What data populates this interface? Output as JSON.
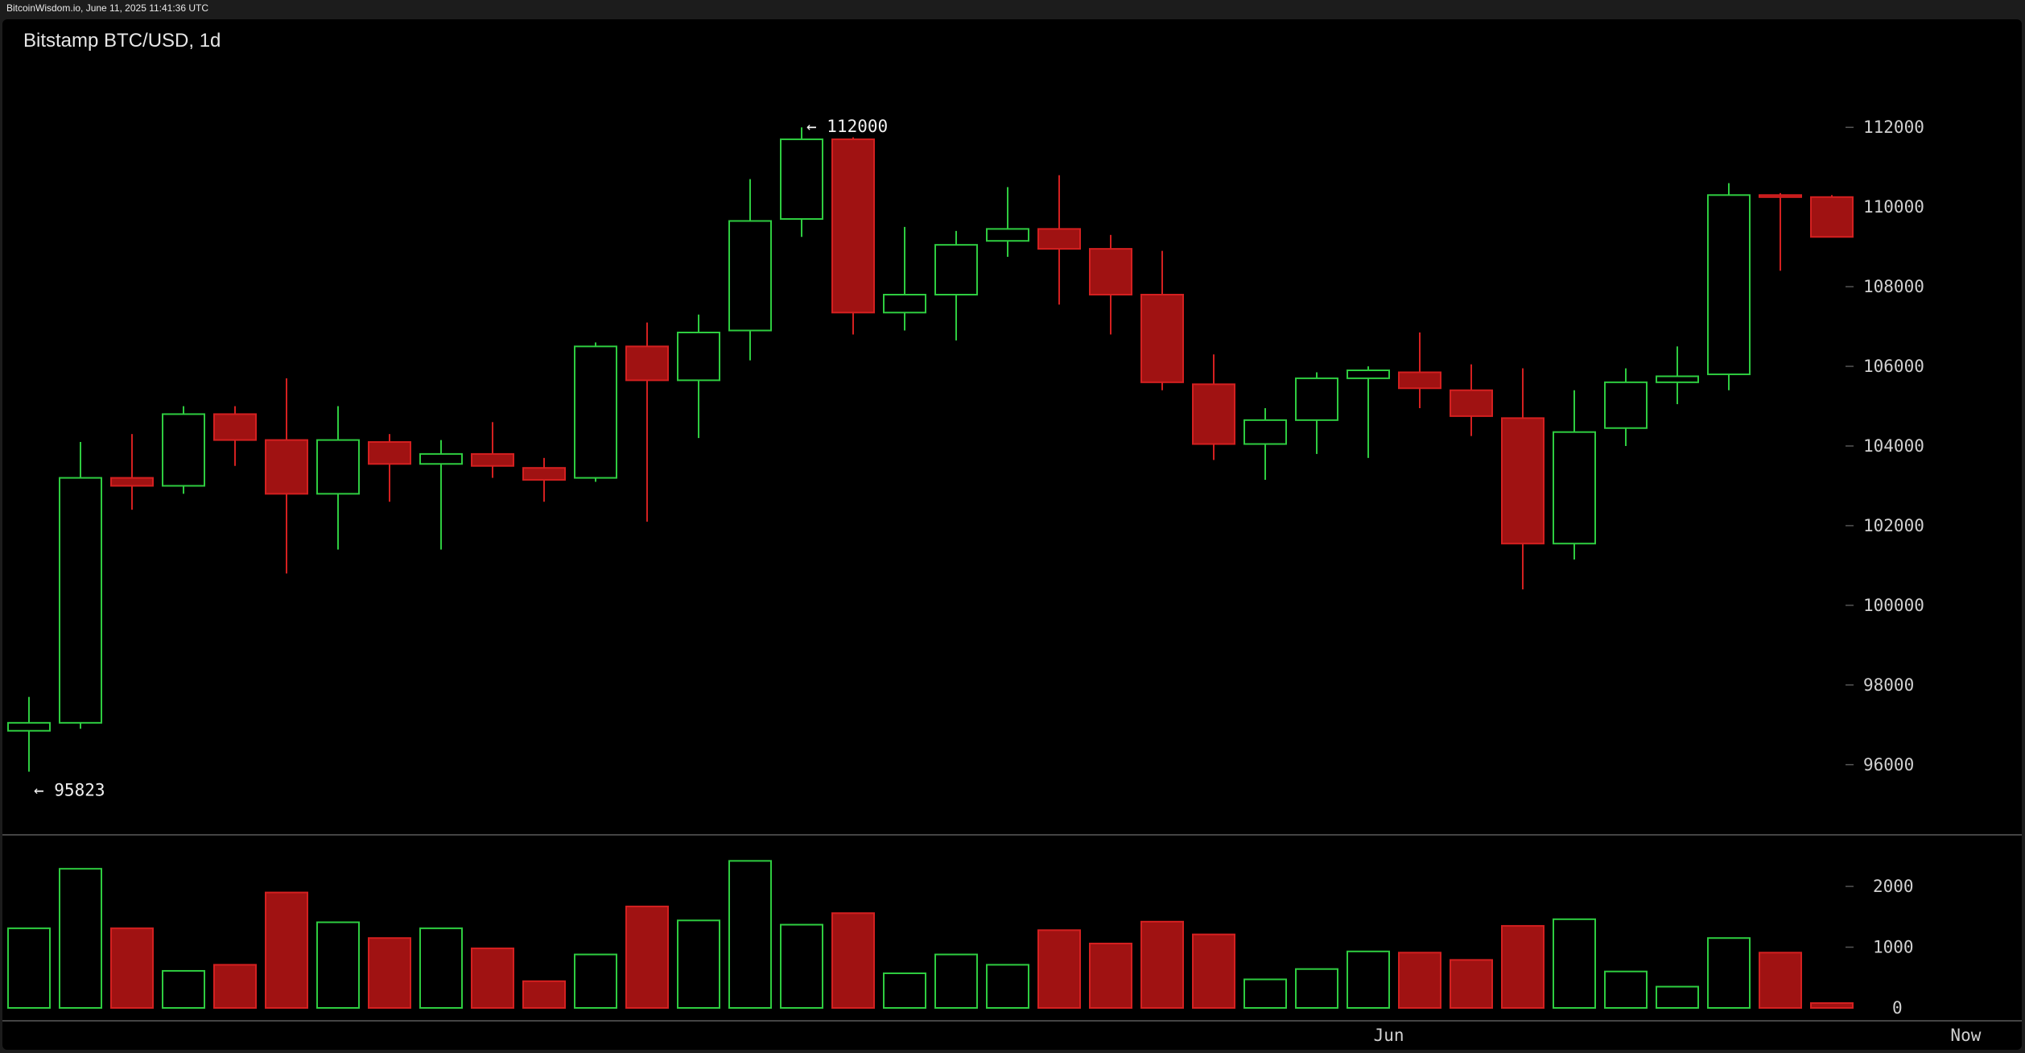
{
  "header": {
    "text": "BitcoinWisdom.io, June 11, 2025 11:41:36 UTC"
  },
  "chart_title": "Bitstamp BTC/USD, 1d",
  "colors": {
    "up": "#2ecc40",
    "down": "#a01212",
    "down_border": "#d42020",
    "background": "#000000",
    "axis_text": "#d0d0d0"
  },
  "chart_data": [
    {
      "type": "candlestick",
      "title": "Bitstamp BTC/USD, 1d",
      "ylim": [
        94500,
        113500
      ],
      "y_ticks": [
        96000,
        98000,
        100000,
        102000,
        104000,
        106000,
        108000,
        110000,
        112000
      ],
      "annotations": [
        {
          "text": "← 112000",
          "value": 112000,
          "index": 15
        },
        {
          "text": "← 95823",
          "value": 95823,
          "index": 0
        }
      ],
      "candles": [
        {
          "o": 96850,
          "h": 97700,
          "l": 95823,
          "c": 97050
        },
        {
          "o": 97050,
          "h": 104100,
          "l": 96900,
          "c": 103200
        },
        {
          "o": 103200,
          "h": 104300,
          "l": 102400,
          "c": 103000
        },
        {
          "o": 103000,
          "h": 105000,
          "l": 102800,
          "c": 104800
        },
        {
          "o": 104800,
          "h": 105000,
          "l": 103500,
          "c": 104150
        },
        {
          "o": 104150,
          "h": 105700,
          "l": 100800,
          "c": 102800
        },
        {
          "o": 102800,
          "h": 105000,
          "l": 101400,
          "c": 104150
        },
        {
          "o": 104100,
          "h": 104300,
          "l": 102600,
          "c": 103550
        },
        {
          "o": 103550,
          "h": 104150,
          "l": 101400,
          "c": 103800
        },
        {
          "o": 103800,
          "h": 104600,
          "l": 103200,
          "c": 103500
        },
        {
          "o": 103450,
          "h": 103700,
          "l": 102600,
          "c": 103150
        },
        {
          "o": 103200,
          "h": 106600,
          "l": 103100,
          "c": 106500
        },
        {
          "o": 106500,
          "h": 107100,
          "l": 102100,
          "c": 105650
        },
        {
          "o": 105650,
          "h": 107300,
          "l": 104200,
          "c": 106850
        },
        {
          "o": 106900,
          "h": 110700,
          "l": 106150,
          "c": 109650
        },
        {
          "o": 109700,
          "h": 112000,
          "l": 109250,
          "c": 111700
        },
        {
          "o": 111700,
          "h": 111750,
          "l": 106800,
          "c": 107350
        },
        {
          "o": 107350,
          "h": 109500,
          "l": 106900,
          "c": 107800
        },
        {
          "o": 107800,
          "h": 109400,
          "l": 106650,
          "c": 109050
        },
        {
          "o": 109150,
          "h": 110500,
          "l": 108750,
          "c": 109450
        },
        {
          "o": 109450,
          "h": 110800,
          "l": 107550,
          "c": 108950
        },
        {
          "o": 108950,
          "h": 109300,
          "l": 106800,
          "c": 107800
        },
        {
          "o": 107800,
          "h": 108900,
          "l": 105400,
          "c": 105600
        },
        {
          "o": 105550,
          "h": 106300,
          "l": 103650,
          "c": 104050
        },
        {
          "o": 104050,
          "h": 104950,
          "l": 103150,
          "c": 104650
        },
        {
          "o": 104650,
          "h": 105850,
          "l": 103800,
          "c": 105700
        },
        {
          "o": 105700,
          "h": 106000,
          "l": 103700,
          "c": 105900
        },
        {
          "o": 105850,
          "h": 106850,
          "l": 104950,
          "c": 105450
        },
        {
          "o": 105400,
          "h": 106050,
          "l": 104250,
          "c": 104750
        },
        {
          "o": 104700,
          "h": 105950,
          "l": 100400,
          "c": 101550
        },
        {
          "o": 101550,
          "h": 105400,
          "l": 101150,
          "c": 104350
        },
        {
          "o": 104450,
          "h": 105950,
          "l": 104000,
          "c": 105600
        },
        {
          "o": 105600,
          "h": 106500,
          "l": 105050,
          "c": 105750
        },
        {
          "o": 105800,
          "h": 110600,
          "l": 105400,
          "c": 110300
        },
        {
          "o": 110300,
          "h": 110350,
          "l": 108400,
          "c": 110250
        },
        {
          "o": 110250,
          "h": 110300,
          "l": 109250,
          "c": 109250
        }
      ]
    },
    {
      "type": "bar",
      "title": "",
      "ylim": [
        0,
        2650
      ],
      "y_ticks": [
        0,
        1000,
        2000
      ],
      "values": [
        1310,
        2290,
        1310,
        610,
        710,
        1900,
        1410,
        1150,
        1310,
        980,
        440,
        880,
        1670,
        1440,
        2420,
        1370,
        1560,
        570,
        880,
        710,
        1280,
        1060,
        1420,
        1210,
        470,
        640,
        930,
        910,
        790,
        1350,
        1460,
        600,
        350,
        1150,
        910,
        80
      ],
      "colors": [
        "up",
        "up",
        "down",
        "up",
        "down",
        "down",
        "up",
        "down",
        "up",
        "down",
        "down",
        "up",
        "down",
        "up",
        "up",
        "up",
        "down",
        "up",
        "up",
        "up",
        "down",
        "down",
        "down",
        "down",
        "up",
        "up",
        "up",
        "down",
        "down",
        "down",
        "up",
        "up",
        "up",
        "up",
        "down",
        "down"
      ],
      "x_labels": [
        {
          "text": "Jun",
          "index": 26.4
        },
        {
          "text": "Now",
          "index": 37.6
        }
      ]
    }
  ]
}
